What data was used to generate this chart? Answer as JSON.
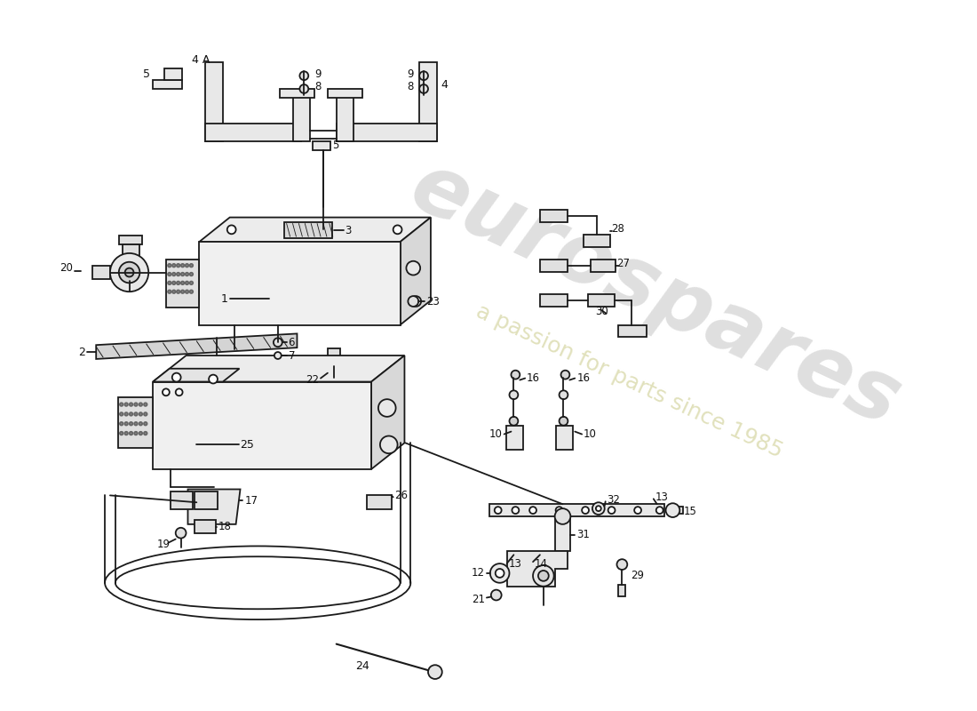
{
  "background_color": "#ffffff",
  "line_color": "#1a1a1a",
  "label_color": "#111111",
  "watermark_color": "#c0c0c0",
  "watermark_color2": "#d4d4a0",
  "figsize": [
    11.0,
    8.0
  ],
  "dpi": 100
}
